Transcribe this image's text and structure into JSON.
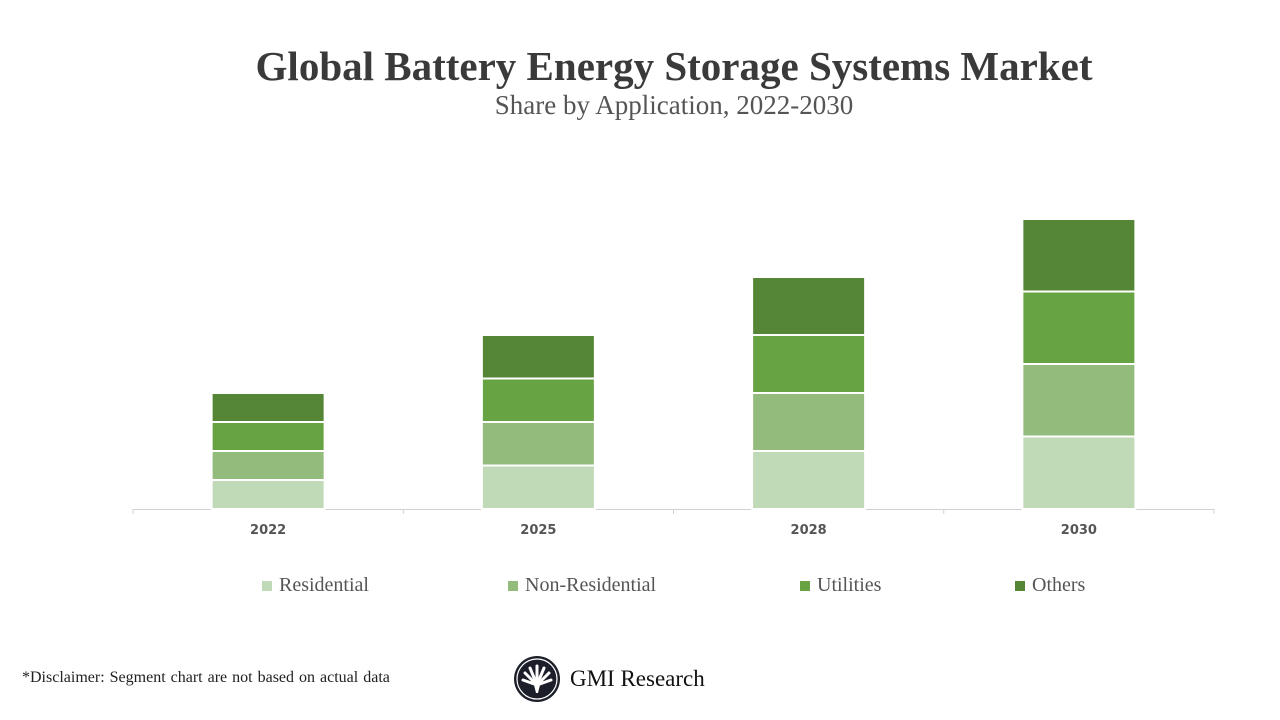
{
  "chart_data": {
    "type": "bar",
    "stacked": true,
    "title": "Global Battery Energy Storage Systems Market",
    "subtitle": "Share by Application, 2022-2030",
    "categories": [
      "2022",
      "2025",
      "2028",
      "2030"
    ],
    "series": [
      {
        "name": "Residential",
        "color": "#c0d9b6",
        "values": [
          1,
          1.5,
          2,
          2.5
        ]
      },
      {
        "name": "Non-Residential",
        "color": "#92bb7c",
        "values": [
          1,
          1.5,
          2,
          2.5
        ]
      },
      {
        "name": "Utilities",
        "color": "#67a342",
        "values": [
          1,
          1.5,
          2,
          2.5
        ]
      },
      {
        "name": "Others",
        "color": "#548635",
        "values": [
          1,
          1.5,
          2,
          2.5
        ]
      }
    ],
    "ylim": [
      0,
      11
    ],
    "y_axis_visible": false,
    "grid": false,
    "legend": "bottom"
  },
  "footer": {
    "disclaimer": "*Disclaimer:   Segment chart are not based on actual data",
    "logo_text": "GMI Research"
  }
}
